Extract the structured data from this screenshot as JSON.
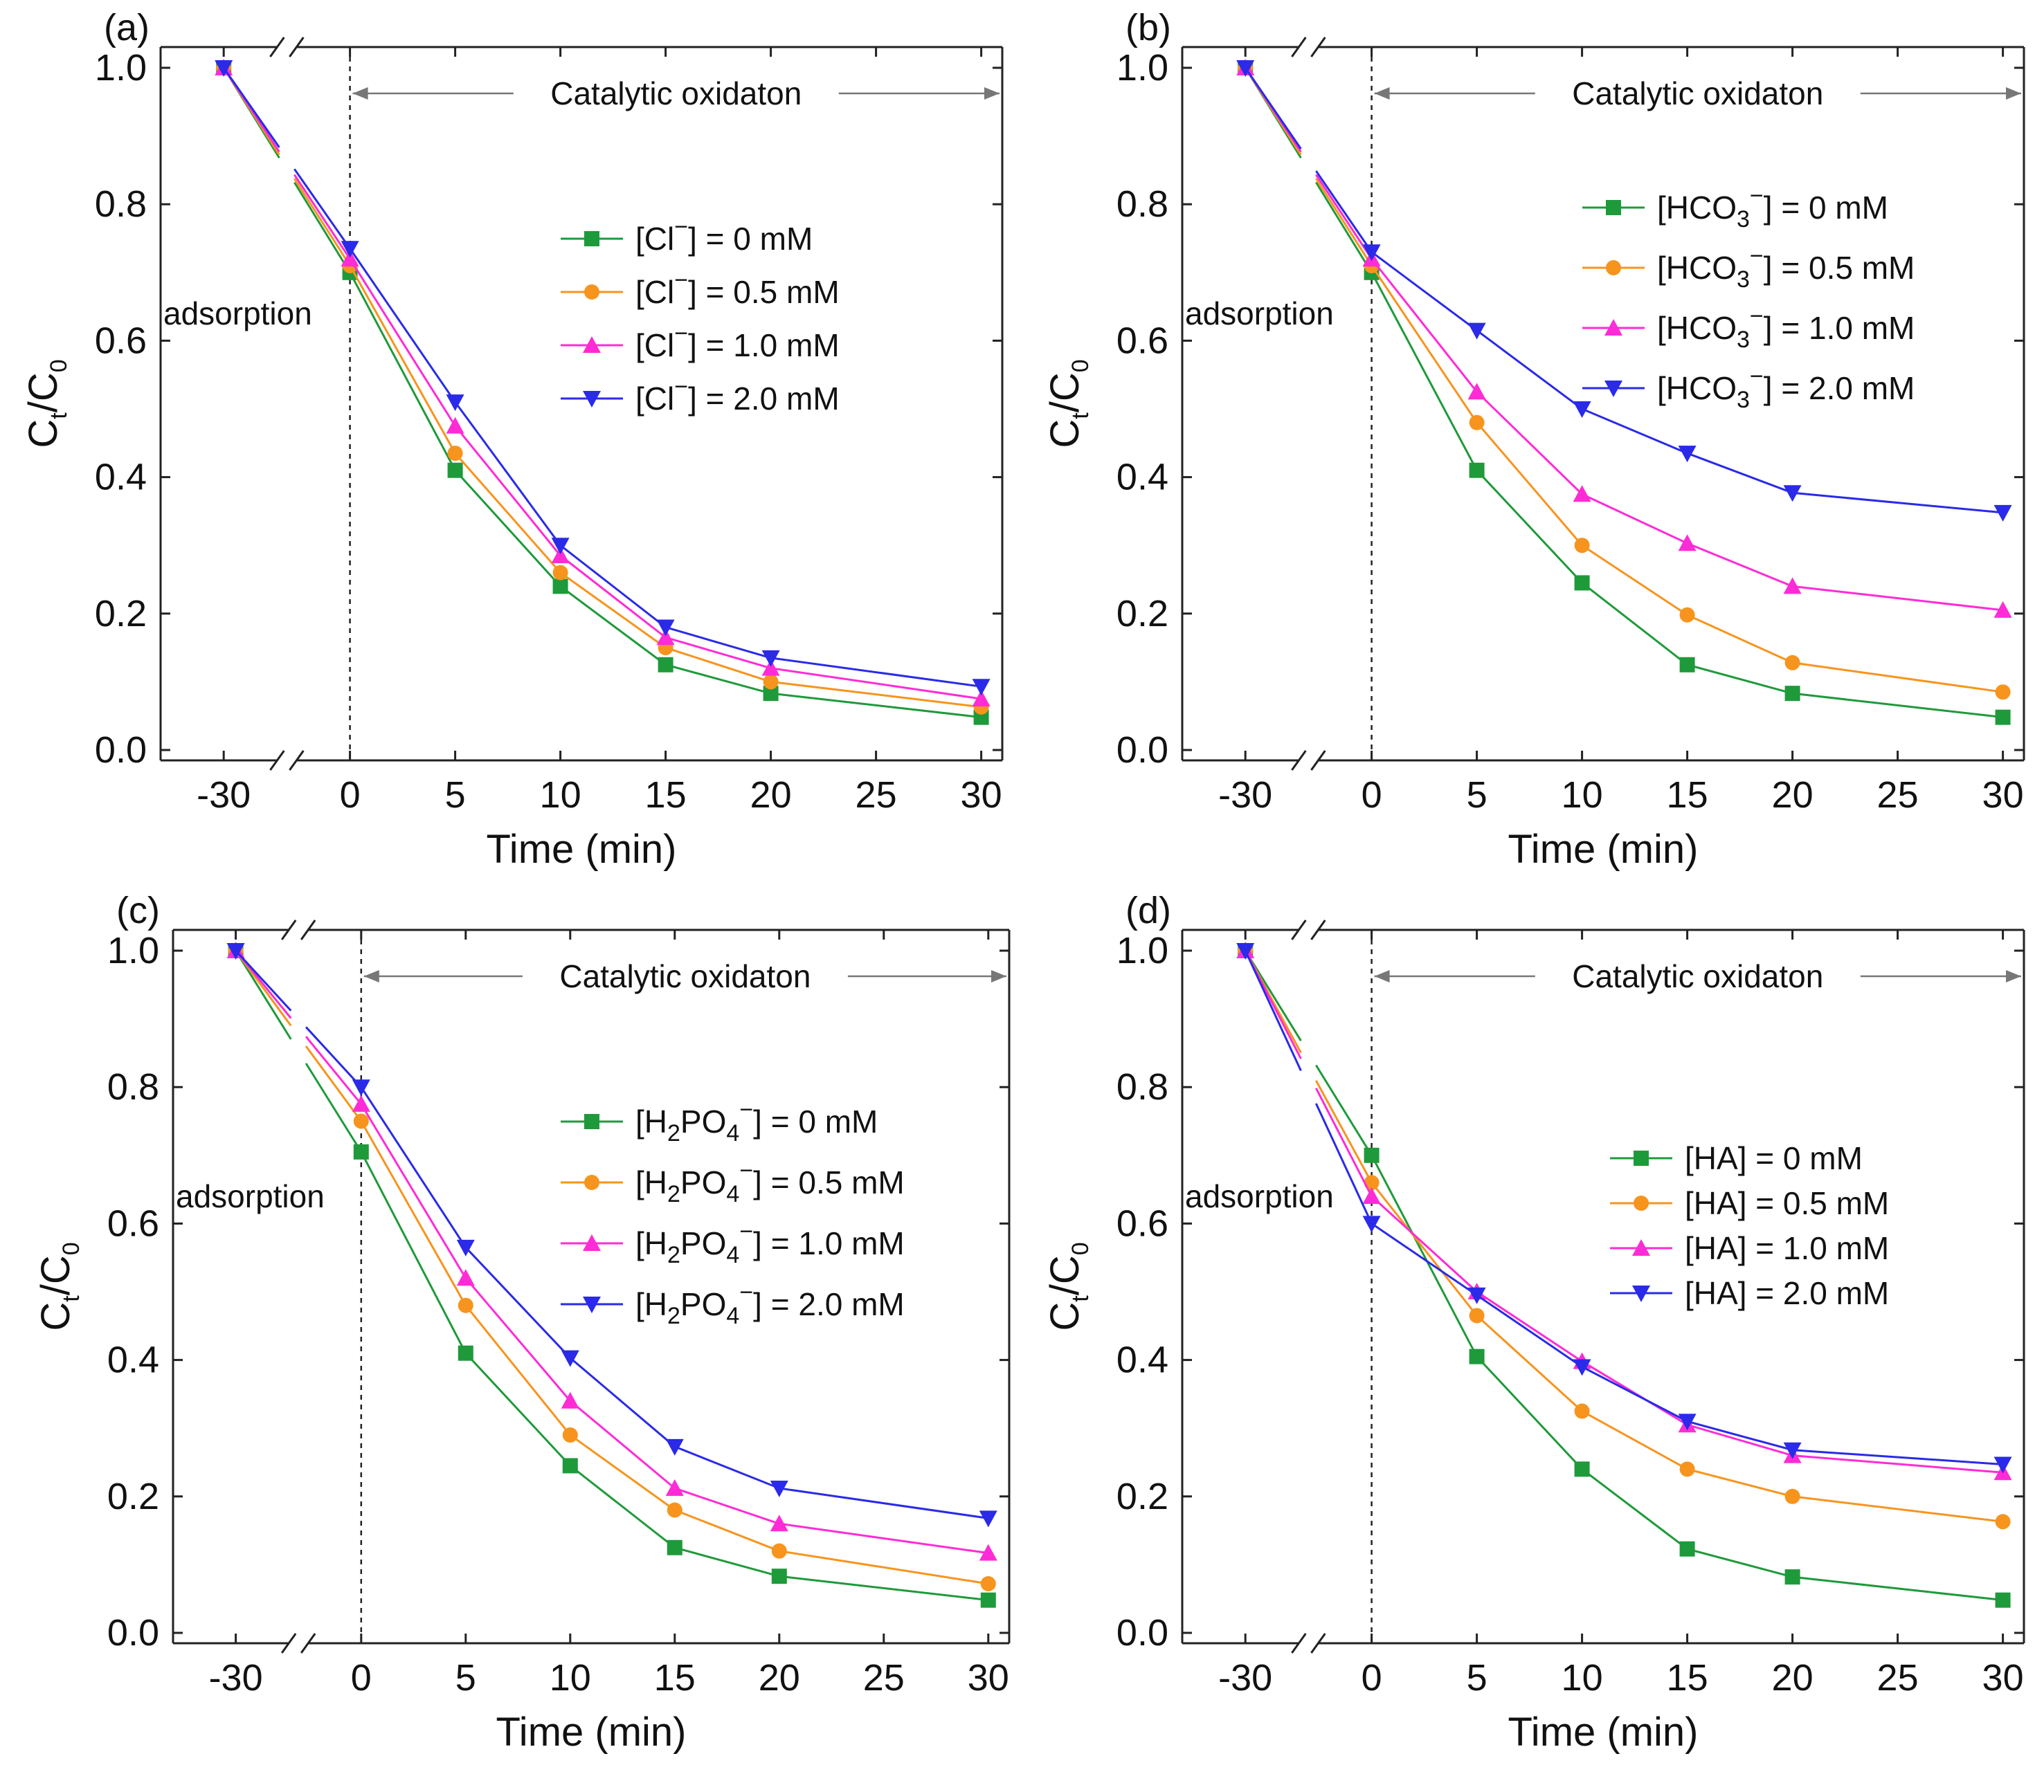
{
  "chart_data": [
    {
      "type": "line",
      "panel_label": "(a)",
      "xlabel": "Time (min)",
      "ylabel": {
        "main": "C",
        "sub1": "t",
        "sep": "/C",
        "sub2": "0"
      },
      "x": [
        -30,
        0,
        5,
        10,
        15,
        20,
        30
      ],
      "xticks": [
        "-30",
        "0",
        "5",
        "10",
        "15",
        "20",
        "25",
        "30"
      ],
      "yticks": [
        "0.0",
        "0.2",
        "0.4",
        "0.6",
        "0.8",
        "1.0"
      ],
      "ylim": [
        0.0,
        1.0
      ],
      "annotation": "Catalytic oxidaton",
      "region_label": "adsorption",
      "legend_position": "upper-middle",
      "series": [
        {
          "legend_prefix": "[Cl",
          "legend_sub": "",
          "legend_sup": "−",
          "legend_suffix": "] = 0 mM",
          "color": "#1e9a3a",
          "marker": "square",
          "values": [
            1.0,
            0.7,
            0.41,
            0.24,
            0.125,
            0.083,
            0.048
          ]
        },
        {
          "legend_prefix": "[Cl",
          "legend_sub": "",
          "legend_sup": "−",
          "legend_suffix": "] = 0.5 mM",
          "color": "#f7941d",
          "marker": "circle",
          "values": [
            1.0,
            0.71,
            0.435,
            0.26,
            0.15,
            0.1,
            0.063
          ]
        },
        {
          "legend_prefix": "[Cl",
          "legend_sub": "",
          "legend_sup": "−",
          "legend_suffix": "] = 1.0 mM",
          "color": "#ff2bd6",
          "marker": "triangle-up",
          "values": [
            1.0,
            0.72,
            0.475,
            0.285,
            0.165,
            0.12,
            0.075
          ]
        },
        {
          "legend_prefix": "[Cl",
          "legend_sub": "",
          "legend_sup": "−",
          "legend_suffix": "] = 2.0 mM",
          "color": "#2a2ae8",
          "marker": "triangle-down",
          "values": [
            1.0,
            0.735,
            0.51,
            0.3,
            0.18,
            0.135,
            0.093
          ]
        }
      ]
    },
    {
      "type": "line",
      "panel_label": "(b)",
      "xlabel": "Time (min)",
      "ylabel": {
        "main": "C",
        "sub1": "t",
        "sep": "/C",
        "sub2": "0"
      },
      "x": [
        -30,
        0,
        5,
        10,
        15,
        20,
        30
      ],
      "xticks": [
        "-30",
        "0",
        "5",
        "10",
        "15",
        "20",
        "25",
        "30"
      ],
      "yticks": [
        "0.0",
        "0.2",
        "0.4",
        "0.6",
        "0.8",
        "1.0"
      ],
      "ylim": [
        0.0,
        1.0
      ],
      "annotation": "Catalytic oxidaton",
      "region_label": "adsorption",
      "legend_position": "upper-right",
      "series": [
        {
          "legend_prefix": "[HCO",
          "legend_sub": "3",
          "legend_sup": "−",
          "legend_suffix": "] = 0 mM",
          "color": "#1e9a3a",
          "marker": "square",
          "values": [
            1.0,
            0.7,
            0.41,
            0.245,
            0.125,
            0.083,
            0.048
          ]
        },
        {
          "legend_prefix": "[HCO",
          "legend_sub": "3",
          "legend_sup": "−",
          "legend_suffix": "] = 0.5 mM",
          "color": "#f7941d",
          "marker": "circle",
          "values": [
            1.0,
            0.71,
            0.48,
            0.3,
            0.198,
            0.128,
            0.085
          ]
        },
        {
          "legend_prefix": "[HCO",
          "legend_sub": "3",
          "legend_sup": "−",
          "legend_suffix": "] = 1.0 mM",
          "color": "#ff2bd6",
          "marker": "triangle-up",
          "values": [
            1.0,
            0.72,
            0.525,
            0.375,
            0.303,
            0.24,
            0.205
          ]
        },
        {
          "legend_prefix": "[HCO",
          "legend_sub": "3",
          "legend_sup": "−",
          "legend_suffix": "] = 2.0 mM",
          "color": "#2a2ae8",
          "marker": "triangle-down",
          "values": [
            1.0,
            0.73,
            0.615,
            0.5,
            0.435,
            0.377,
            0.348
          ]
        }
      ]
    },
    {
      "type": "line",
      "panel_label": "(c)",
      "xlabel": "Time (min)",
      "ylabel": {
        "main": "C",
        "sub1": "t",
        "sep": "/C",
        "sub2": "0"
      },
      "x": [
        -30,
        0,
        5,
        10,
        15,
        20,
        30
      ],
      "xticks": [
        "-30",
        "0",
        "5",
        "10",
        "15",
        "20",
        "25",
        "30"
      ],
      "yticks": [
        "0.0",
        "0.2",
        "0.4",
        "0.6",
        "0.8",
        "1.0"
      ],
      "ylim": [
        0.0,
        1.0
      ],
      "annotation": "Catalytic oxidaton",
      "region_label": "adsorption",
      "legend_position": "upper-middle",
      "series": [
        {
          "legend_prefix": "[H",
          "legend_sub": "2",
          "legend_mid": "PO",
          "legend_sub2": "4",
          "legend_sup": "−",
          "legend_suffix": "] = 0 mM",
          "color": "#1e9a3a",
          "marker": "square",
          "values": [
            1.0,
            0.705,
            0.41,
            0.245,
            0.125,
            0.083,
            0.048
          ]
        },
        {
          "legend_prefix": "[H",
          "legend_sub": "2",
          "legend_mid": "PO",
          "legend_sub2": "4",
          "legend_sup": "−",
          "legend_suffix": "] = 0.5 mM",
          "color": "#f7941d",
          "marker": "circle",
          "values": [
            1.0,
            0.75,
            0.48,
            0.29,
            0.18,
            0.12,
            0.072
          ]
        },
        {
          "legend_prefix": "[H",
          "legend_sub": "2",
          "legend_mid": "PO",
          "legend_sub2": "4",
          "legend_sup": "−",
          "legend_suffix": "] = 1.0 mM",
          "color": "#ff2bd6",
          "marker": "triangle-up",
          "values": [
            1.0,
            0.775,
            0.52,
            0.34,
            0.212,
            0.16,
            0.117
          ]
        },
        {
          "legend_prefix": "[H",
          "legend_sub": "2",
          "legend_mid": "PO",
          "legend_sub2": "4",
          "legend_sup": "−",
          "legend_suffix": "] = 2.0 mM",
          "color": "#2a2ae8",
          "marker": "triangle-down",
          "values": [
            1.0,
            0.8,
            0.565,
            0.403,
            0.273,
            0.212,
            0.168
          ]
        }
      ]
    },
    {
      "type": "line",
      "panel_label": "(d)",
      "xlabel": "Time (min)",
      "ylabel": {
        "main": "C",
        "sub1": "t",
        "sep": "/C",
        "sub2": "0"
      },
      "x": [
        -30,
        0,
        5,
        10,
        15,
        20,
        30
      ],
      "xticks": [
        "-30",
        "0",
        "5",
        "10",
        "15",
        "20",
        "25",
        "30"
      ],
      "yticks": [
        "0.0",
        "0.2",
        "0.4",
        "0.6",
        "0.8",
        "1.0"
      ],
      "ylim": [
        0.0,
        1.0
      ],
      "annotation": "Catalytic oxidaton",
      "region_label": "adsorption",
      "legend_position": "right",
      "series": [
        {
          "legend_prefix": "[HA",
          "legend_sub": "",
          "legend_sup": "",
          "legend_suffix": "] = 0 mM",
          "color": "#1e9a3a",
          "marker": "square",
          "values": [
            1.0,
            0.7,
            0.405,
            0.24,
            0.123,
            0.082,
            0.048
          ]
        },
        {
          "legend_prefix": "[HA",
          "legend_sub": "",
          "legend_sup": "",
          "legend_suffix": "] = 0.5 mM",
          "color": "#f7941d",
          "marker": "circle",
          "values": [
            1.0,
            0.66,
            0.465,
            0.325,
            0.24,
            0.2,
            0.163
          ]
        },
        {
          "legend_prefix": "[HA",
          "legend_sub": "",
          "legend_sup": "",
          "legend_suffix": "] = 1.0 mM",
          "color": "#ff2bd6",
          "marker": "triangle-up",
          "values": [
            1.0,
            0.64,
            0.5,
            0.398,
            0.305,
            0.26,
            0.235
          ]
        },
        {
          "legend_prefix": "[HA",
          "legend_sub": "",
          "legend_sup": "",
          "legend_suffix": "] = 2.0 mM",
          "color": "#2a2ae8",
          "marker": "triangle-down",
          "values": [
            1.0,
            0.6,
            0.495,
            0.39,
            0.31,
            0.268,
            0.247
          ]
        }
      ]
    }
  ]
}
